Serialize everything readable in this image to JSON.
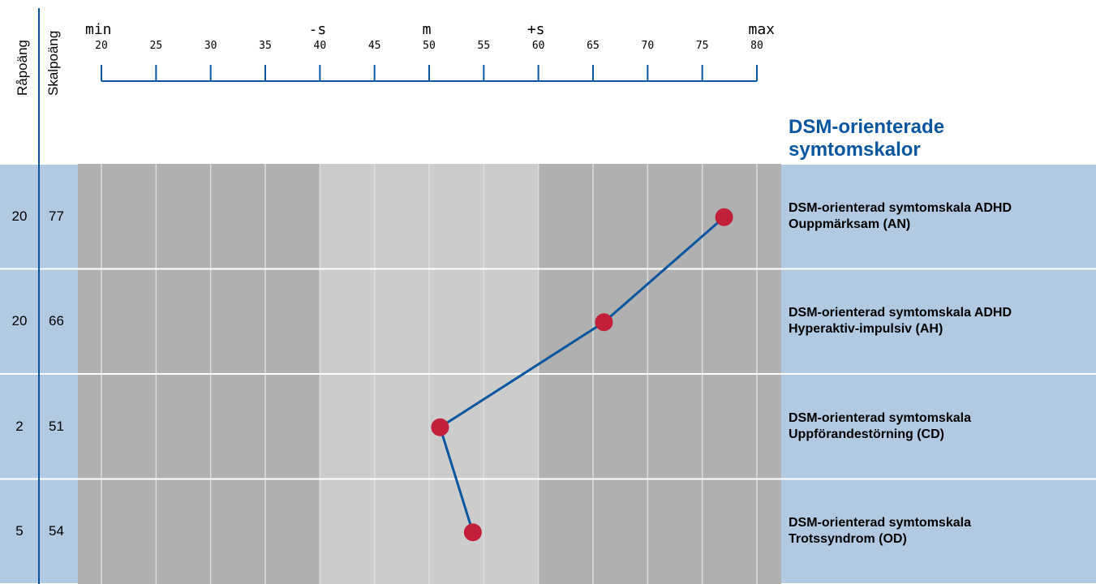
{
  "headers": {
    "raw": "Råpoäng",
    "scaled": "Skalpoäng"
  },
  "section_title": "DSM-orienterade symtomskalor",
  "colors": {
    "accent": "#0a56a1",
    "row_band": "#b1c9e1",
    "dark_zone": "#b0b0b0",
    "light_zone": "#cccccc",
    "marker": "#c2203a",
    "line": "#0a56a1",
    "gridline": "#dddddd"
  },
  "chart_data": {
    "type": "line",
    "orientation": "horizontal-profile",
    "xlim": [
      20,
      80
    ],
    "ticks": [
      20,
      25,
      30,
      35,
      40,
      45,
      50,
      55,
      60,
      65,
      70,
      75,
      80
    ],
    "band_labels": [
      {
        "label": "min",
        "at": 20
      },
      {
        "label": "-s",
        "at": 40
      },
      {
        "label": "m",
        "at": 50
      },
      {
        "label": "+s",
        "at": 60
      },
      {
        "label": "max",
        "at": 80
      }
    ],
    "zones": [
      {
        "from": 20,
        "to": 40,
        "shade": "dark"
      },
      {
        "from": 40,
        "to": 60,
        "shade": "light"
      },
      {
        "from": 60,
        "to": 80,
        "shade": "dark"
      }
    ],
    "rows": [
      {
        "raw": "20",
        "scaled": "77",
        "value": 77,
        "label_line1": "DSM-orienterad symtomskala ADHD",
        "label_line2": "Ouppmärksam (AN)"
      },
      {
        "raw": "20",
        "scaled": "66",
        "value": 66,
        "label_line1": "DSM-orienterad symtomskala ADHD",
        "label_line2": "Hyperaktiv-impulsiv (AH)"
      },
      {
        "raw": "2",
        "scaled": "51",
        "value": 51,
        "label_line1": "DSM-orienterad symtomskala",
        "label_line2": "Uppförandestörning (CD)"
      },
      {
        "raw": "5",
        "scaled": "54",
        "value": 54,
        "label_line1": "DSM-orienterad symtomskala",
        "label_line2": "Trotssyndrom (OD)"
      }
    ],
    "grid": true
  }
}
